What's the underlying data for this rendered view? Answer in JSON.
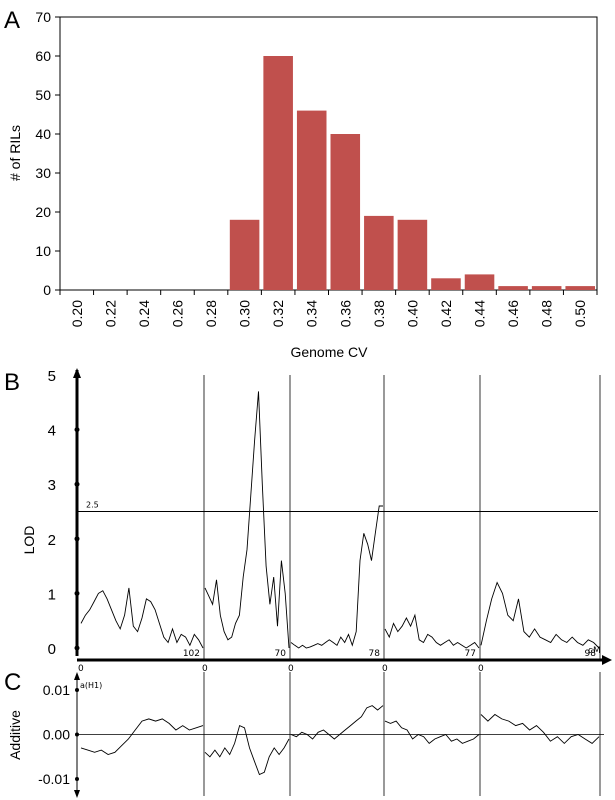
{
  "panels": {
    "a": "A",
    "b": "B",
    "c": "C"
  },
  "colors": {
    "bar": "#c0504d",
    "axis": "#000000",
    "grid": "#000000",
    "trace": "#000000"
  },
  "chart_data": [
    {
      "type": "bar",
      "panel": "A",
      "xlabel": "Genome CV",
      "ylabel": "# of RILs",
      "ylim": [
        0,
        70
      ],
      "yticks": [
        "0",
        "10",
        "20",
        "30",
        "40",
        "50",
        "60",
        "70"
      ],
      "categories": [
        "0.20",
        "0.22",
        "0.24",
        "0.26",
        "0.28",
        "0.30",
        "0.32",
        "0.34",
        "0.36",
        "0.38",
        "0.40",
        "0.42",
        "0.44",
        "0.46",
        "0.48",
        "0.50"
      ],
      "values": [
        0,
        0,
        0,
        0,
        0,
        18,
        60,
        46,
        40,
        19,
        18,
        3,
        4,
        1,
        1,
        1
      ]
    },
    {
      "type": "line",
      "panel": "B",
      "ylabel": "LOD",
      "ylim": [
        0,
        5
      ],
      "yticks": [
        "0",
        "1",
        "2",
        "3",
        "4",
        "5"
      ],
      "threshold": 2.5,
      "threshold_label": "2.5",
      "xunit": "cM",
      "chromosomes": [
        {
          "start_label": "0",
          "end_label": "102",
          "lod": [
            0.45,
            0.6,
            0.7,
            0.85,
            1.0,
            1.05,
            0.9,
            0.7,
            0.5,
            0.35,
            0.6,
            1.1,
            0.4,
            0.3,
            0.55,
            0.9,
            0.85,
            0.7,
            0.45,
            0.2,
            0.1,
            0.35,
            0.1,
            0.25,
            0.2,
            0.05,
            0.25,
            0.15,
            0.0
          ]
        },
        {
          "start_label": "0",
          "end_label": "70",
          "lod": [
            1.1,
            0.95,
            0.8,
            1.25,
            0.6,
            0.3,
            0.15,
            0.2,
            0.45,
            0.6,
            1.3,
            1.8,
            2.8,
            3.8,
            4.7,
            3.0,
            1.5,
            0.8,
            1.3,
            0.4,
            1.6,
            1.0,
            0.0
          ]
        },
        {
          "start_label": "0",
          "end_label": "78",
          "lod": [
            0.1,
            0.05,
            0.0,
            0.05,
            0.0,
            0.02,
            0.05,
            0.08,
            0.05,
            0.1,
            0.15,
            0.1,
            0.05,
            0.2,
            0.1,
            0.25,
            0.05,
            0.3,
            1.6,
            2.1,
            1.9,
            1.6,
            2.1,
            2.6,
            2.6
          ]
        },
        {
          "start_label": "0",
          "end_label": "77",
          "lod": [
            0.35,
            0.2,
            0.45,
            0.3,
            0.4,
            0.55,
            0.4,
            0.6,
            0.15,
            0.1,
            0.25,
            0.2,
            0.1,
            0.05,
            0.1,
            0.15,
            0.05,
            0.1,
            0.05,
            0.0,
            0.05,
            0.1,
            0.0
          ]
        },
        {
          "start_label": "0",
          "end_label": "98",
          "lod": [
            0.05,
            0.5,
            0.9,
            1.2,
            1.0,
            0.6,
            0.5,
            0.9,
            0.3,
            0.2,
            0.35,
            0.2,
            0.15,
            0.1,
            0.25,
            0.15,
            0.1,
            0.2,
            0.1,
            0.05,
            0.15,
            0.1,
            0.0
          ]
        }
      ]
    },
    {
      "type": "line",
      "panel": "C",
      "ylabel": "Additive",
      "ylim": [
        -0.01,
        0.01
      ],
      "yticks": [
        "-0.01",
        "0.00",
        "0.01"
      ],
      "series_label": "a(H1)",
      "chromosomes": [
        {
          "add": [
            -0.003,
            -0.0035,
            -0.004,
            -0.0035,
            -0.0045,
            -0.004,
            -0.0025,
            -0.001,
            0.001,
            0.003,
            0.0035,
            0.003,
            0.0035,
            0.0025,
            0.001,
            0.002,
            0.001,
            0.0015,
            0.002
          ]
        },
        {
          "add": [
            -0.004,
            -0.005,
            -0.0035,
            -0.005,
            -0.003,
            -0.0045,
            -0.002,
            0.002,
            0.0015,
            -0.003,
            -0.006,
            -0.009,
            -0.0085,
            -0.005,
            -0.003,
            -0.0045,
            -0.003,
            -0.001
          ]
        },
        {
          "add": [
            0.0,
            -0.0005,
            0.0005,
            0.0,
            -0.001,
            0.0005,
            0.001,
            0.0,
            -0.001,
            0.0,
            0.001,
            0.002,
            0.003,
            0.004,
            0.006,
            0.0065,
            0.0055,
            0.0065
          ]
        },
        {
          "add": [
            0.003,
            0.0025,
            0.003,
            0.0015,
            0.001,
            -0.001,
            0.0,
            -0.0005,
            -0.002,
            -0.001,
            -0.0005,
            0.0,
            -0.0015,
            -0.001,
            -0.002,
            -0.0015,
            -0.001,
            0.0
          ]
        },
        {
          "add": [
            0.0045,
            0.003,
            0.0045,
            0.0035,
            0.003,
            0.002,
            0.0025,
            0.001,
            0.002,
            0.0005,
            -0.0015,
            -0.0005,
            -0.002,
            -0.0005,
            0.0,
            -0.001,
            -0.002,
            -0.0005
          ]
        }
      ]
    }
  ]
}
